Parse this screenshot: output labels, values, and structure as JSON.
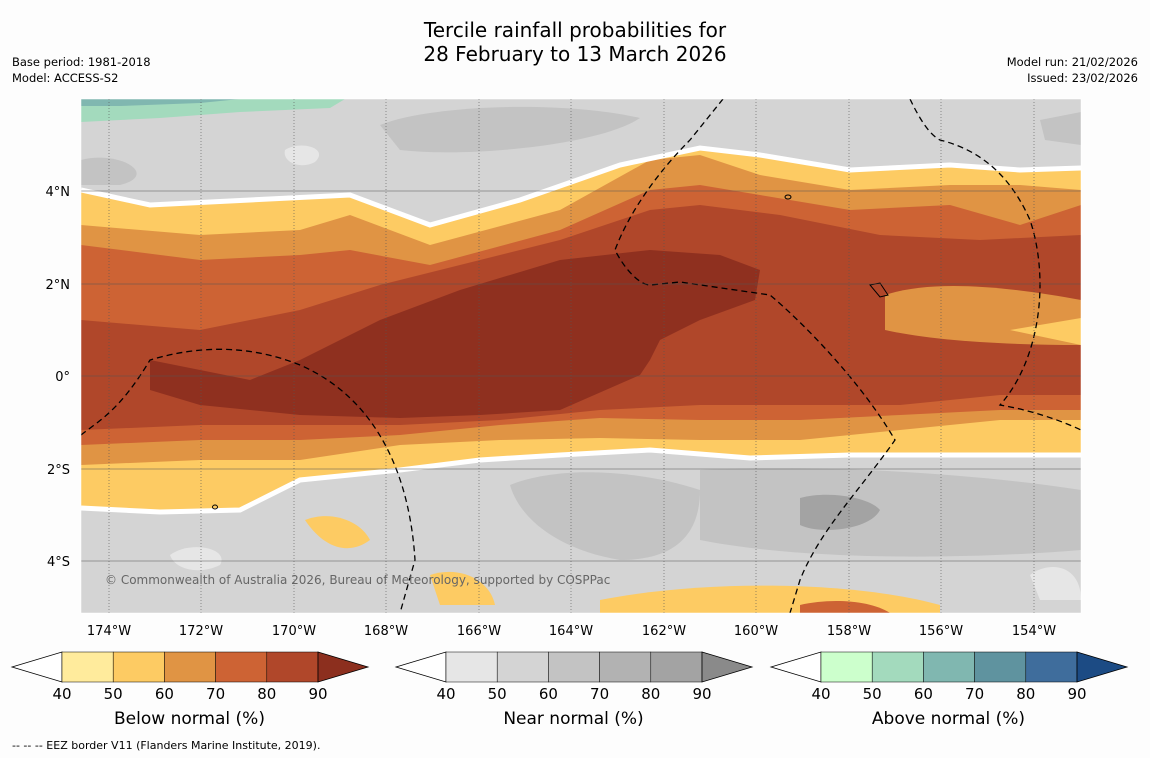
{
  "title_line1": "Tercile rainfall probabilities for",
  "title_line2": "28 February to 13 March 2026",
  "base_period": "Base period: 1981-2018",
  "model": "Model: ACCESS-S2",
  "model_run": "Model run: 21/02/2026",
  "issued": "Issued: 23/02/2026",
  "copyright": "© Commonwealth of Australia 2026, Bureau of Meteorology, supported by COSPPac",
  "footnote": "--  --  -- EEZ border V11 (Flanders Marine Institute, 2019).",
  "map": {
    "lon_labels": [
      "174°W",
      "172°W",
      "170°W",
      "168°W",
      "166°W",
      "164°W",
      "162°W",
      "160°W",
      "158°W",
      "156°W",
      "154°W"
    ],
    "lat_labels": [
      "4°N",
      "2°N",
      "0°",
      "2°S",
      "4°S"
    ]
  },
  "colorbars": [
    {
      "label": "Below normal (%)",
      "ticks": [
        "40",
        "50",
        "60",
        "70",
        "80",
        "90"
      ],
      "colors": [
        "#ffeb9c",
        "#fdcb63",
        "#e09444",
        "#cd6334",
        "#b0472a",
        "#8c2f1e"
      ]
    },
    {
      "label": "Near normal (%)",
      "ticks": [
        "40",
        "50",
        "60",
        "70",
        "80",
        "90"
      ],
      "colors": [
        "#e6e6e6",
        "#d4d4d4",
        "#c3c3c3",
        "#b2b2b2",
        "#a3a3a3",
        "#8a8a8a"
      ]
    },
    {
      "label": "Above normal (%)",
      "ticks": [
        "40",
        "50",
        "60",
        "70",
        "80",
        "90"
      ],
      "colors": [
        "#ccffcc",
        "#a3dabd",
        "#80b7b0",
        "#5f939f",
        "#3f6d9c",
        "#1c4b84"
      ]
    }
  ]
}
